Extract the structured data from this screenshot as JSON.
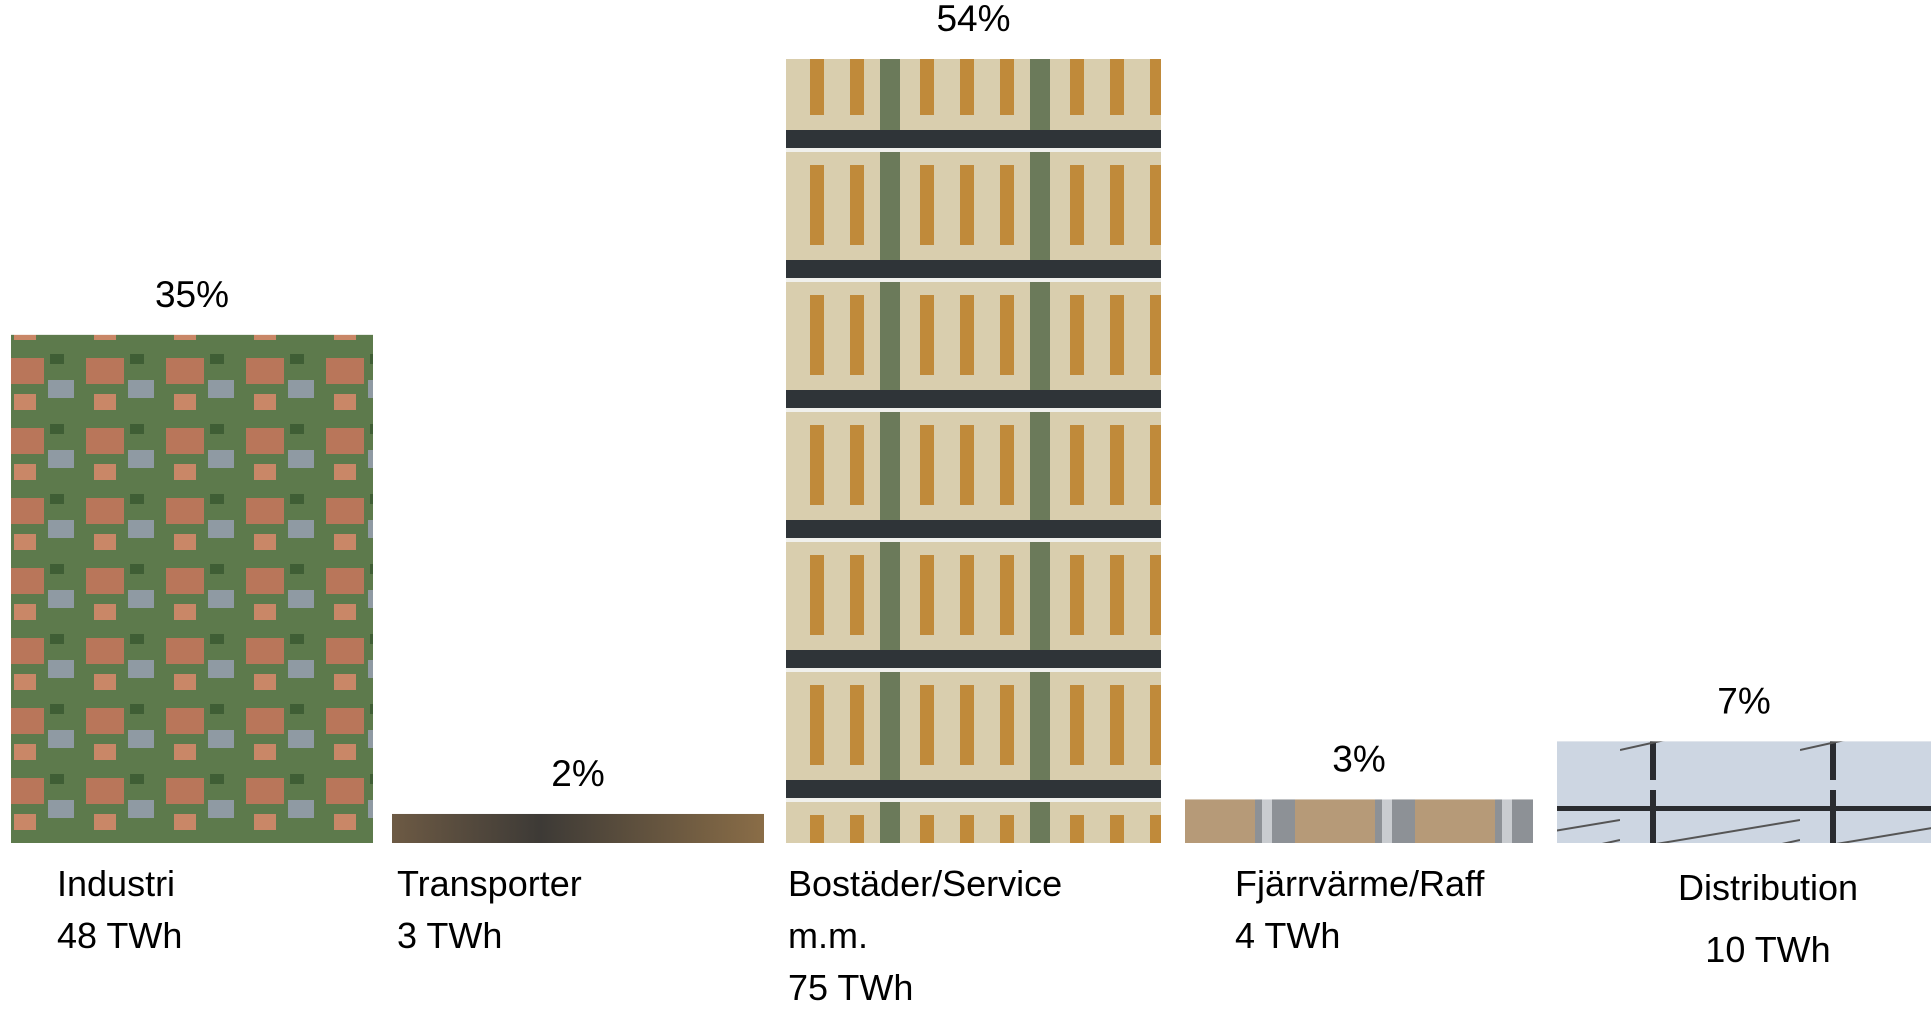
{
  "chart_data": {
    "type": "bar",
    "categories": [
      "Industri",
      "Transporter",
      "Bostäder/Service m.m.",
      "Fjärrvärme/Raff",
      "Distribution"
    ],
    "energy_labels": [
      "48 TWh",
      "3 TWh",
      "75 TWh",
      "4 TWh",
      "10 TWh"
    ],
    "values": [
      35,
      2,
      54,
      3,
      7
    ],
    "value_labels": [
      "35%",
      "2%",
      "54%",
      "3%",
      "7%"
    ]
  }
}
